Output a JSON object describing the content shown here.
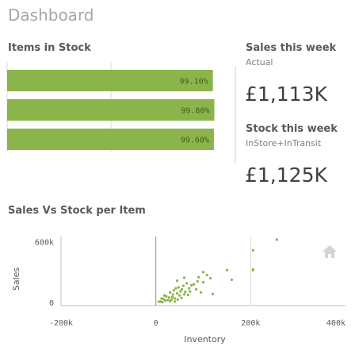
{
  "header": {
    "title": "Dashboard"
  },
  "items_in_stock": {
    "title": "Items in Stock",
    "chart_data": {
      "type": "bar",
      "orientation": "horizontal",
      "values": [
        99.1,
        99.8,
        99.6
      ],
      "labels": [
        "99.10%",
        "99.80%",
        "99.60%"
      ],
      "xlim": [
        0,
        100
      ],
      "bar_color": "#8bb44a"
    }
  },
  "kpis": {
    "sales": {
      "title": "Sales this week",
      "subtitle": "Actual",
      "value": "£1,113K"
    },
    "stock": {
      "title": "Stock this week",
      "subtitle": "InStore+InTransit",
      "value": "£1,125K"
    }
  },
  "scatter": {
    "title": "Sales Vs Stock per Item",
    "chart_data": {
      "type": "scatter",
      "xlabel": "Inventory",
      "ylabel": "Sales",
      "xlim": [
        -200000,
        400000
      ],
      "ylim": [
        -30000,
        650000
      ],
      "x_ticks": [
        "-200k",
        "0",
        "200k",
        "400k"
      ],
      "y_ticks": [
        "600k",
        "0"
      ],
      "point_color": "#8bb44a",
      "points": [
        [
          255000,
          620000
        ],
        [
          205000,
          515000
        ],
        [
          205000,
          325000
        ],
        [
          205000,
          320000
        ],
        [
          150000,
          320000
        ],
        [
          100000,
          300000
        ],
        [
          108000,
          270000
        ],
        [
          160000,
          225000
        ],
        [
          115000,
          240000
        ],
        [
          90000,
          250000
        ],
        [
          88000,
          210000
        ],
        [
          100000,
          200000
        ],
        [
          60000,
          245000
        ],
        [
          45000,
          215000
        ],
        [
          80000,
          180000
        ],
        [
          65000,
          190000
        ],
        [
          75000,
          170000
        ],
        [
          58000,
          165000
        ],
        [
          70000,
          140000
        ],
        [
          48000,
          150000
        ],
        [
          55000,
          130000
        ],
        [
          38000,
          120000
        ],
        [
          42000,
          140000
        ],
        [
          52000,
          110000
        ],
        [
          62000,
          105000
        ],
        [
          72000,
          110000
        ],
        [
          30000,
          100000
        ],
        [
          36000,
          80000
        ],
        [
          45000,
          90000
        ],
        [
          50000,
          70000
        ],
        [
          60000,
          80000
        ],
        [
          68000,
          75000
        ],
        [
          22000,
          60000
        ],
        [
          28000,
          50000
        ],
        [
          35000,
          55000
        ],
        [
          40000,
          40000
        ],
        [
          46000,
          30000
        ],
        [
          54000,
          45000
        ],
        [
          16000,
          35000
        ],
        [
          20000,
          20000
        ],
        [
          25000,
          25000
        ],
        [
          30000,
          15000
        ],
        [
          10000,
          10000
        ],
        [
          14000,
          5000
        ],
        [
          6000,
          8000
        ],
        [
          33000,
          30000
        ],
        [
          85000,
          130000
        ],
        [
          95000,
          100000
        ],
        [
          120000,
          85000
        ],
        [
          18000,
          70000
        ],
        [
          12000,
          40000
        ],
        [
          40000,
          10000
        ]
      ]
    }
  },
  "icons": {
    "home": "home-icon"
  }
}
